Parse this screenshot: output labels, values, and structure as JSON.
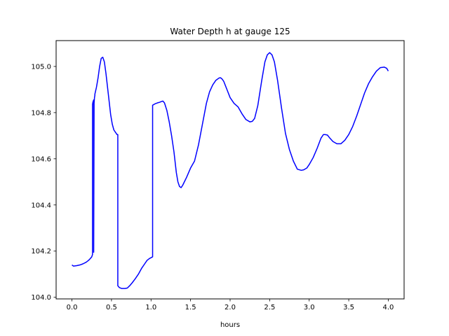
{
  "chart_data": {
    "type": "line",
    "title": "Water Depth h at gauge 125",
    "xlabel": "hours",
    "ylabel": "",
    "xlim": [
      -0.2,
      4.2
    ],
    "ylim": [
      103.993,
      105.112
    ],
    "xticks": [
      0.0,
      0.5,
      1.0,
      1.5,
      2.0,
      2.5,
      3.0,
      3.5,
      4.0
    ],
    "xtick_labels": [
      "0.0",
      "0.5",
      "1.0",
      "1.5",
      "2.0",
      "2.5",
      "3.0",
      "3.5",
      "4.0"
    ],
    "yticks": [
      104.0,
      104.2,
      104.4,
      104.6,
      104.8,
      105.0
    ],
    "ytick_labels": [
      "104.0",
      "104.2",
      "104.4",
      "104.6",
      "104.8",
      "105.0"
    ],
    "grid": false,
    "series": [
      {
        "color": "#0000ff",
        "x": [
          0.0,
          0.02,
          0.06,
          0.1,
          0.14,
          0.18,
          0.21,
          0.23,
          0.25,
          0.26,
          0.26,
          0.265,
          0.27,
          0.275,
          0.275,
          0.28,
          0.285,
          0.29,
          0.29,
          0.31,
          0.33,
          0.35,
          0.37,
          0.39,
          0.41,
          0.43,
          0.46,
          0.49,
          0.51,
          0.53,
          0.55,
          0.57,
          0.58,
          0.58,
          0.6,
          0.63,
          0.67,
          0.7,
          0.73,
          0.76,
          0.8,
          0.84,
          0.88,
          0.92,
          0.95,
          0.98,
          1.02,
          1.02,
          1.05,
          1.08,
          1.11,
          1.13,
          1.15,
          1.17,
          1.2,
          1.23,
          1.26,
          1.29,
          1.32,
          1.34,
          1.36,
          1.38,
          1.4,
          1.45,
          1.5,
          1.55,
          1.6,
          1.65,
          1.7,
          1.74,
          1.78,
          1.82,
          1.86,
          1.88,
          1.9,
          1.92,
          1.96,
          2.0,
          2.05,
          2.1,
          2.15,
          2.2,
          2.25,
          2.28,
          2.31,
          2.35,
          2.4,
          2.44,
          2.47,
          2.5,
          2.53,
          2.56,
          2.6,
          2.65,
          2.7,
          2.75,
          2.8,
          2.85,
          2.9,
          2.93,
          2.97,
          3.0,
          3.05,
          3.1,
          3.15,
          3.18,
          3.2,
          3.23,
          3.26,
          3.3,
          3.35,
          3.4,
          3.45,
          3.5,
          3.55,
          3.6,
          3.65,
          3.7,
          3.75,
          3.8,
          3.85,
          3.9,
          3.95,
          3.98,
          4.0
        ],
        "y": [
          104.14,
          104.135,
          104.137,
          104.14,
          104.145,
          104.152,
          104.16,
          104.167,
          104.175,
          104.185,
          104.835,
          104.845,
          104.85,
          104.855,
          104.195,
          104.84,
          104.865,
          104.875,
          104.88,
          104.91,
          104.95,
          105.0,
          105.035,
          105.04,
          105.02,
          104.97,
          104.88,
          104.79,
          104.75,
          104.725,
          104.715,
          104.705,
          104.705,
          104.05,
          104.042,
          104.038,
          104.038,
          104.04,
          104.05,
          104.062,
          104.08,
          104.1,
          104.125,
          104.145,
          104.16,
          104.168,
          104.175,
          104.832,
          104.838,
          104.842,
          104.845,
          104.848,
          104.85,
          104.842,
          104.81,
          104.76,
          104.7,
          104.63,
          104.54,
          104.5,
          104.48,
          104.475,
          104.485,
          104.52,
          104.56,
          104.59,
          104.66,
          104.75,
          104.84,
          104.89,
          104.92,
          104.94,
          104.95,
          104.951,
          104.945,
          104.935,
          104.9,
          104.865,
          104.84,
          104.825,
          104.795,
          104.77,
          104.76,
          104.762,
          104.775,
          104.83,
          104.94,
          105.02,
          105.05,
          105.06,
          105.05,
          105.02,
          104.94,
          104.82,
          104.71,
          104.64,
          104.59,
          104.555,
          104.55,
          104.552,
          104.56,
          104.575,
          104.605,
          104.645,
          104.69,
          104.705,
          104.705,
          104.703,
          104.69,
          104.675,
          104.665,
          104.665,
          104.68,
          104.705,
          104.74,
          104.785,
          104.835,
          104.885,
          104.925,
          104.955,
          104.98,
          104.995,
          104.997,
          104.992,
          104.98
        ]
      }
    ]
  }
}
